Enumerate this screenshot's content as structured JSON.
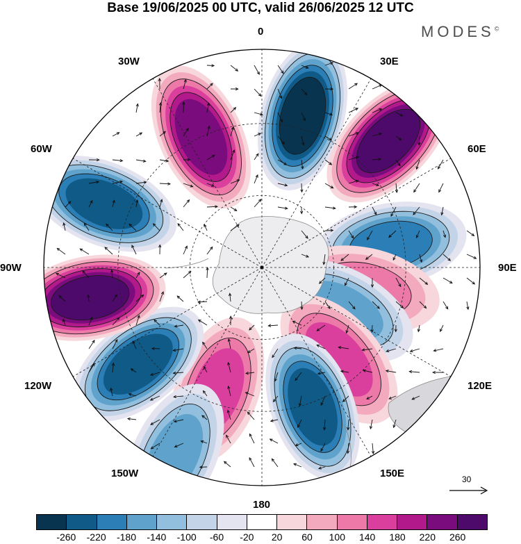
{
  "title": "Base 19/06/2025 00 UTC, valid 26/06/2025 12 UTC",
  "brand": {
    "text": "MODES",
    "mark": "©"
  },
  "longitude_labels": {
    "n0": "0",
    "n30e": "30E",
    "n60e": "60E",
    "n90e": "90E",
    "n120e": "120E",
    "n150e": "150E",
    "n180": "180",
    "n150w": "150W",
    "n120w": "120W",
    "n90w": "90W",
    "n60w": "60W",
    "n30w": "30W"
  },
  "reference_vector": {
    "label": "30"
  },
  "colorbar": {
    "colors": [
      "#08344f",
      "#0f5a87",
      "#2b7fb6",
      "#5fa2cc",
      "#92bfdd",
      "#c3d4e8",
      "#e4e4f0",
      "#ffffff",
      "#f7d6dc",
      "#f3aabf",
      "#ec79a8",
      "#db3f9d",
      "#b2198a",
      "#7a0c7e",
      "#4d0a6b"
    ],
    "ticks": [
      "-260",
      "-220",
      "-180",
      "-140",
      "-100",
      "-60",
      "-20",
      "20",
      "60",
      "100",
      "140",
      "180",
      "220",
      "260"
    ]
  },
  "anomaly_centers": [
    {
      "sign": "negative",
      "value": -240,
      "lon": 15,
      "colat": 0.72
    },
    {
      "sign": "positive",
      "value": 250,
      "lon": 45,
      "colat": 0.82
    },
    {
      "sign": "negative",
      "value": -170,
      "lon": 80,
      "colat": 0.6
    },
    {
      "sign": "positive",
      "value": 110,
      "lon": 102,
      "colat": 0.48
    },
    {
      "sign": "negative",
      "value": -120,
      "lon": 118,
      "colat": 0.42
    },
    {
      "sign": "positive",
      "value": 150,
      "lon": 140,
      "colat": 0.55
    },
    {
      "sign": "negative",
      "value": -210,
      "lon": 160,
      "colat": 0.68
    },
    {
      "sign": "positive",
      "value": 140,
      "lon": -160,
      "colat": 0.6
    },
    {
      "sign": "negative",
      "value": -230,
      "lon": -128,
      "colat": 0.72
    },
    {
      "sign": "positive",
      "value": 240,
      "lon": -100,
      "colat": 0.8
    },
    {
      "sign": "negative",
      "value": -220,
      "lon": -68,
      "colat": 0.78
    },
    {
      "sign": "positive",
      "value": 230,
      "lon": -25,
      "colat": 0.66
    },
    {
      "sign": "negative",
      "value": -140,
      "lon": -155,
      "colat": 0.95
    }
  ]
}
